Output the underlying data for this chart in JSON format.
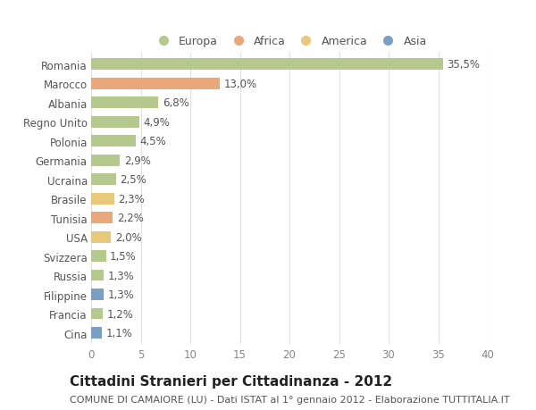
{
  "countries": [
    "Romania",
    "Marocco",
    "Albania",
    "Regno Unito",
    "Polonia",
    "Germania",
    "Ucraina",
    "Brasile",
    "Tunisia",
    "USA",
    "Svizzera",
    "Russia",
    "Filippine",
    "Francia",
    "Cina"
  ],
  "values": [
    35.5,
    13.0,
    6.8,
    4.9,
    4.5,
    2.9,
    2.5,
    2.3,
    2.2,
    2.0,
    1.5,
    1.3,
    1.3,
    1.2,
    1.1
  ],
  "labels": [
    "35,5%",
    "13,0%",
    "6,8%",
    "4,9%",
    "4,5%",
    "2,9%",
    "2,5%",
    "2,3%",
    "2,2%",
    "2,0%",
    "1,5%",
    "1,3%",
    "1,3%",
    "1,2%",
    "1,1%"
  ],
  "colors": [
    "#b5c98e",
    "#e8a87c",
    "#b5c98e",
    "#b5c98e",
    "#b5c98e",
    "#b5c98e",
    "#b5c98e",
    "#e8c87a",
    "#e8a87c",
    "#e8c87a",
    "#b5c98e",
    "#b5c98e",
    "#7a9fc4",
    "#b5c98e",
    "#7a9fc4"
  ],
  "legend_labels": [
    "Europa",
    "Africa",
    "America",
    "Asia"
  ],
  "legend_colors": [
    "#b5c98e",
    "#e8a87c",
    "#e8c87a",
    "#7a9fc4"
  ],
  "title": "Cittadini Stranieri per Cittadinanza - 2012",
  "subtitle": "COMUNE DI CAMAIORE (LU) - Dati ISTAT al 1° gennaio 2012 - Elaborazione TUTTITALIA.IT",
  "xlim": [
    0,
    40
  ],
  "xticks": [
    0,
    5,
    10,
    15,
    20,
    25,
    30,
    35,
    40
  ],
  "background_color": "#ffffff",
  "plot_bg_color": "#ffffff",
  "grid_color": "#e0e0e0",
  "bar_height": 0.6,
  "title_fontsize": 11,
  "subtitle_fontsize": 8,
  "tick_fontsize": 8.5,
  "label_fontsize": 8.5
}
